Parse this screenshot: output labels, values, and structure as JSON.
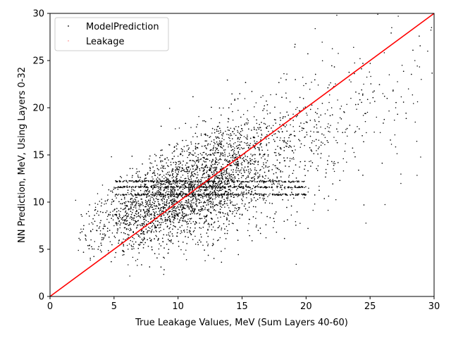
{
  "chart_data": {
    "type": "scatter",
    "xlabel": "True Leakage Values, MeV (Sum Layers 40-60)",
    "ylabel": "NN Prediction, MeV, Using Layers 0-32",
    "xlim": [
      0,
      30
    ],
    "ylim": [
      0,
      30
    ],
    "xticks": [
      "0",
      "5",
      "10",
      "15",
      "20",
      "25",
      "30"
    ],
    "yticks": [
      "0",
      "5",
      "10",
      "15",
      "20",
      "25",
      "30"
    ],
    "grid": false,
    "legend_position": "top-left",
    "series": [
      {
        "name": "ModelPrediction",
        "kind": "points",
        "color": "#000000",
        "description_points": [
          [
            2.0,
            10.2
          ],
          [
            2.5,
            8.5
          ],
          [
            3.0,
            9.0
          ],
          [
            3.2,
            6.0
          ],
          [
            4.1,
            11.8
          ],
          [
            4.8,
            14.8
          ],
          [
            5.0,
            7.5
          ],
          [
            5.5,
            9.0
          ],
          [
            6.0,
            8.8
          ],
          [
            6.5,
            10.2
          ],
          [
            7.0,
            9.5
          ],
          [
            7.5,
            10.8
          ],
          [
            8.0,
            11.0
          ],
          [
            8.5,
            9.8
          ],
          [
            9.0,
            10.5
          ],
          [
            9.5,
            11.2
          ],
          [
            10.0,
            10.7
          ],
          [
            10.5,
            12.0
          ],
          [
            11.0,
            11.6
          ],
          [
            11.5,
            12.6
          ],
          [
            12.0,
            13.0
          ],
          [
            12.5,
            12.2
          ],
          [
            13.0,
            13.5
          ],
          [
            13.5,
            14.0
          ],
          [
            14.0,
            12.8
          ],
          [
            14.5,
            15.0
          ],
          [
            15.0,
            14.2
          ],
          [
            15.5,
            15.8
          ],
          [
            16.0,
            14.6
          ],
          [
            16.5,
            16.2
          ],
          [
            17.0,
            15.5
          ],
          [
            17.5,
            17.2
          ],
          [
            18.0,
            16.8
          ],
          [
            18.5,
            15.9
          ],
          [
            19.0,
            18.0
          ],
          [
            19.5,
            17.5
          ],
          [
            20.0,
            18.5
          ],
          [
            20.5,
            16.5
          ],
          [
            21.0,
            19.0
          ],
          [
            21.5,
            17.8
          ],
          [
            22.0,
            20.0
          ],
          [
            22.5,
            18.4
          ],
          [
            23.0,
            19.5
          ],
          [
            23.5,
            21.0
          ],
          [
            24.0,
            18.0
          ],
          [
            24.5,
            22.5
          ],
          [
            25.0,
            20.5
          ],
          [
            25.5,
            19.0
          ],
          [
            26.0,
            21.5
          ],
          [
            26.5,
            23.5
          ],
          [
            27.0,
            20.0
          ],
          [
            27.5,
            24.5
          ],
          [
            28.0,
            22.0
          ],
          [
            28.5,
            25.0
          ],
          [
            29.0,
            23.0
          ],
          [
            29.5,
            26.0
          ],
          [
            29.8,
            28.5
          ],
          [
            22.4,
            29.8
          ],
          [
            25.6,
            29.9
          ],
          [
            27.2,
            29.7
          ]
        ],
        "horizontal_band_levels": [
          10.8,
          11.6,
          12.2
        ]
      },
      {
        "name": "Leakage",
        "kind": "line",
        "color": "#ff0000",
        "x": [
          0,
          30
        ],
        "y": [
          0,
          30
        ]
      }
    ]
  }
}
